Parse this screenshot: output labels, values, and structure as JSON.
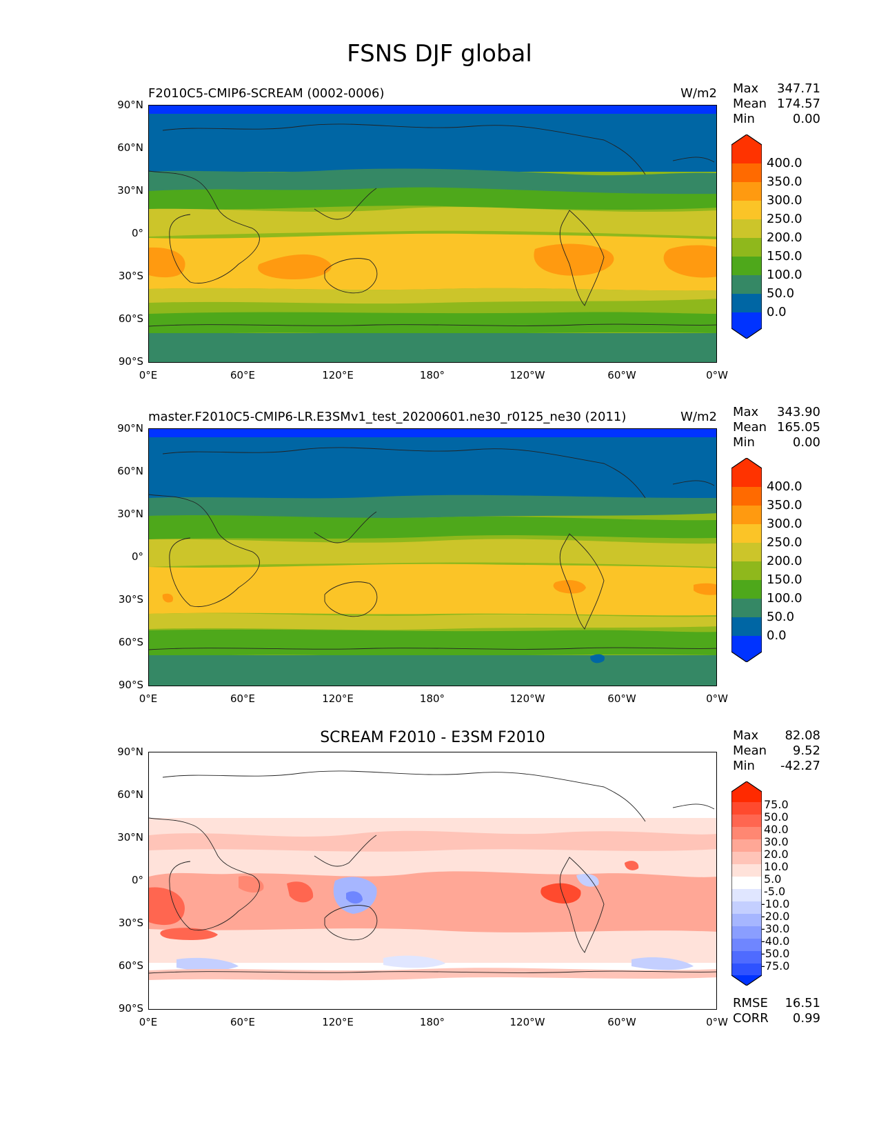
{
  "suptitle": "FSNS DJF global",
  "panels": [
    {
      "kind": "test",
      "title_left": "F2010C5-CMIP6-SCREAM (0002-0006)",
      "title_center": "",
      "units": "W/m2",
      "stats": [
        {
          "label": "Max",
          "value": "347.71"
        },
        {
          "label": "Mean",
          "value": "174.57"
        },
        {
          "label": "Min",
          "value": "0.00"
        }
      ],
      "colorbar": {
        "labels": [
          "400.0",
          "350.0",
          "300.0",
          "250.0",
          "200.0",
          "150.0",
          "100.0",
          "50.0",
          "0.0"
        ],
        "colors": [
          "#ff3300",
          "#ff6a00",
          "#ff9a10",
          "#fbc427",
          "#ccc52a",
          "#8fb81c",
          "#4ea81b",
          "#358865",
          "#0066a4",
          "#0033ff"
        ]
      }
    },
    {
      "kind": "ref",
      "title_left": "master.F2010C5-CMIP6-LR.E3SMv1_test_20200601.ne30_r0125_ne30 (2011)",
      "title_center": "",
      "units": "W/m2",
      "stats": [
        {
          "label": "Max",
          "value": "343.90"
        },
        {
          "label": "Mean",
          "value": "165.05"
        },
        {
          "label": "Min",
          "value": "0.00"
        }
      ],
      "colorbar": {
        "labels": [
          "400.0",
          "350.0",
          "300.0",
          "250.0",
          "200.0",
          "150.0",
          "100.0",
          "50.0",
          "0.0"
        ],
        "colors": [
          "#ff3300",
          "#ff6a00",
          "#ff9a10",
          "#fbc427",
          "#ccc52a",
          "#8fb81c",
          "#4ea81b",
          "#358865",
          "#0066a4",
          "#0033ff"
        ]
      }
    },
    {
      "kind": "diff",
      "title_left": "",
      "title_center": "SCREAM F2010 - E3SM F2010",
      "units": "",
      "stats": [
        {
          "label": "Max",
          "value": "82.08"
        },
        {
          "label": "Mean",
          "value": "9.52"
        },
        {
          "label": "Min",
          "value": "-42.27"
        }
      ],
      "colorbar": {
        "labels": [
          "75.0",
          "50.0",
          "40.0",
          "30.0",
          "20.0",
          "10.0",
          "5.0",
          "-5.0",
          "-10.0",
          "-20.0",
          "-30.0",
          "-40.0",
          "-50.0",
          "-75.0"
        ],
        "colors": [
          "#ff2a00",
          "#ff4a2e",
          "#ff6650",
          "#ff8772",
          "#ffa796",
          "#ffc4b8",
          "#ffe2da",
          "#ffffff",
          "#e0e6ff",
          "#c4cfff",
          "#a6b6ff",
          "#8a9eff",
          "#6f86ff",
          "#4f6bff",
          "#2f52ff",
          "#0033ff"
        ]
      },
      "errors": [
        {
          "label": "RMSE",
          "value": "16.51"
        },
        {
          "label": "CORR",
          "value": "0.99"
        }
      ]
    }
  ],
  "axes": {
    "y_ticks": [
      "90°N",
      "60°N",
      "30°N",
      "0°",
      "30°S",
      "60°S",
      "90°S"
    ],
    "x_ticks": [
      "0°E",
      "60°E",
      "120°E",
      "180°",
      "120°W",
      "60°W",
      "0°W"
    ]
  }
}
